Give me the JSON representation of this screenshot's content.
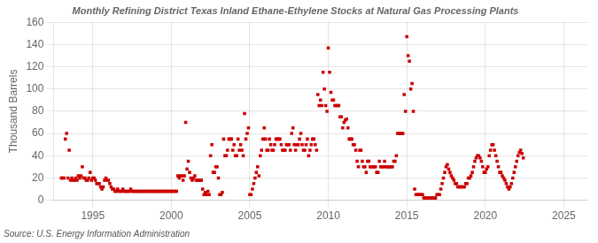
{
  "chart_data": {
    "type": "scatter",
    "title": "Monthly Refining District Texas Inland Ethane-Ethylene Stocks at Natural Gas Processing Plants",
    "ylabel": "Thousand Barrels",
    "annotations": [
      "Source: U.S. Energy Information Administration"
    ],
    "color": "#cc0000",
    "marker": "square",
    "grid": true,
    "xlim": [
      1992.5,
      2026.5
    ],
    "ylim": [
      0,
      160
    ],
    "xticks": [
      1995,
      2000,
      2005,
      2010,
      2015,
      2020,
      2025
    ],
    "yticks": [
      0,
      20,
      40,
      60,
      80,
      100,
      120,
      140,
      160
    ],
    "x": [
      1993.0,
      1993.083,
      1993.167,
      1993.25,
      1993.333,
      1993.417,
      1993.5,
      1993.583,
      1993.667,
      1993.75,
      1993.833,
      1993.917,
      1994.0,
      1994.083,
      1994.167,
      1994.25,
      1994.333,
      1994.417,
      1994.5,
      1994.583,
      1994.667,
      1994.75,
      1994.833,
      1994.917,
      1995.0,
      1995.083,
      1995.167,
      1995.25,
      1995.333,
      1995.417,
      1995.5,
      1995.583,
      1995.667,
      1995.75,
      1995.833,
      1995.917,
      1996.0,
      1996.083,
      1996.167,
      1996.25,
      1996.333,
      1996.417,
      1996.5,
      1996.583,
      1996.667,
      1996.75,
      1996.833,
      1996.917,
      1997.0,
      1997.083,
      1997.167,
      1997.25,
      1997.333,
      1997.417,
      1997.5,
      1997.583,
      1997.667,
      1997.75,
      1997.833,
      1997.917,
      1998.0,
      1998.083,
      1998.167,
      1998.25,
      1998.333,
      1998.417,
      1998.5,
      1998.583,
      1998.667,
      1998.75,
      1998.833,
      1998.917,
      1999.0,
      1999.083,
      1999.167,
      1999.25,
      1999.333,
      1999.417,
      1999.5,
      1999.583,
      1999.667,
      1999.75,
      1999.833,
      1999.917,
      2000.0,
      2000.083,
      2000.167,
      2000.25,
      2000.333,
      2000.417,
      2000.5,
      2000.583,
      2000.667,
      2000.75,
      2000.833,
      2000.917,
      2001.0,
      2001.083,
      2001.167,
      2001.25,
      2001.333,
      2001.417,
      2001.5,
      2001.583,
      2001.667,
      2001.75,
      2001.833,
      2001.917,
      2002.0,
      2002.083,
      2002.167,
      2002.25,
      2002.333,
      2002.417,
      2002.5,
      2002.583,
      2002.667,
      2002.75,
      2002.833,
      2002.917,
      2003.0,
      2003.083,
      2003.167,
      2003.25,
      2003.333,
      2003.417,
      2003.5,
      2003.583,
      2003.667,
      2003.75,
      2003.833,
      2003.917,
      2004.0,
      2004.083,
      2004.167,
      2004.25,
      2004.333,
      2004.417,
      2004.5,
      2004.583,
      2004.667,
      2004.75,
      2004.833,
      2004.917,
      2005.0,
      2005.083,
      2005.167,
      2005.25,
      2005.333,
      2005.417,
      2005.5,
      2005.583,
      2005.667,
      2005.75,
      2005.833,
      2005.917,
      2006.0,
      2006.083,
      2006.167,
      2006.25,
      2006.333,
      2006.417,
      2006.5,
      2006.583,
      2006.667,
      2006.75,
      2006.833,
      2006.917,
      2007.0,
      2007.083,
      2007.167,
      2007.25,
      2007.333,
      2007.417,
      2007.5,
      2007.583,
      2007.667,
      2007.75,
      2007.833,
      2007.917,
      2008.0,
      2008.083,
      2008.167,
      2008.25,
      2008.333,
      2008.417,
      2008.5,
      2008.583,
      2008.667,
      2008.75,
      2008.833,
      2008.917,
      2009.0,
      2009.083,
      2009.167,
      2009.25,
      2009.333,
      2009.417,
      2009.5,
      2009.583,
      2009.667,
      2009.75,
      2009.833,
      2009.917,
      2010.0,
      2010.083,
      2010.167,
      2010.25,
      2010.333,
      2010.417,
      2010.5,
      2010.583,
      2010.667,
      2010.75,
      2010.833,
      2010.917,
      2011.0,
      2011.083,
      2011.167,
      2011.25,
      2011.333,
      2011.417,
      2011.5,
      2011.583,
      2011.667,
      2011.75,
      2011.833,
      2011.917,
      2012.0,
      2012.083,
      2012.167,
      2012.25,
      2012.333,
      2012.417,
      2012.5,
      2012.583,
      2012.667,
      2012.75,
      2012.833,
      2012.917,
      2013.0,
      2013.083,
      2013.167,
      2013.25,
      2013.333,
      2013.417,
      2013.5,
      2013.583,
      2013.667,
      2013.75,
      2013.833,
      2013.917,
      2014.0,
      2014.083,
      2014.167,
      2014.25,
      2014.333,
      2014.417,
      2014.5,
      2014.583,
      2014.667,
      2014.75,
      2014.833,
      2014.917,
      2015.0,
      2015.083,
      2015.167,
      2015.25,
      2015.333,
      2015.417,
      2015.5,
      2015.583,
      2015.667,
      2015.75,
      2015.833,
      2015.917,
      2016.0,
      2016.083,
      2016.167,
      2016.25,
      2016.333,
      2016.417,
      2016.5,
      2016.583,
      2016.667,
      2016.75,
      2016.833,
      2016.917,
      2017.0,
      2017.083,
      2017.167,
      2017.25,
      2017.333,
      2017.417,
      2017.5,
      2017.583,
      2017.667,
      2017.75,
      2017.833,
      2017.917,
      2018.0,
      2018.083,
      2018.167,
      2018.25,
      2018.333,
      2018.417,
      2018.5,
      2018.583,
      2018.667,
      2018.75,
      2018.833,
      2018.917,
      2019.0,
      2019.083,
      2019.167,
      2019.25,
      2019.333,
      2019.417,
      2019.5,
      2019.583,
      2019.667,
      2019.75,
      2019.833,
      2019.917,
      2020.0,
      2020.083,
      2020.167,
      2020.25,
      2020.333,
      2020.417,
      2020.5,
      2020.583,
      2020.667,
      2020.75,
      2020.833,
      2020.917,
      2021.0,
      2021.083,
      2021.167,
      2021.25,
      2021.333,
      2021.417,
      2021.5,
      2021.583,
      2021.667,
      2021.75,
      2021.833,
      2021.917,
      2022.0,
      2022.083,
      2022.167,
      2022.25,
      2022.333,
      2022.417
    ],
    "y": [
      20,
      20,
      20,
      55,
      60,
      20,
      45,
      18,
      20,
      18,
      18,
      20,
      18,
      22,
      20,
      22,
      30,
      20,
      20,
      18,
      18,
      20,
      25,
      18,
      20,
      20,
      18,
      15,
      15,
      15,
      12,
      10,
      12,
      18,
      20,
      18,
      18,
      15,
      12,
      10,
      10,
      8,
      8,
      10,
      8,
      8,
      8,
      10,
      8,
      8,
      8,
      8,
      8,
      10,
      8,
      8,
      8,
      8,
      8,
      8,
      8,
      8,
      8,
      8,
      8,
      8,
      8,
      8,
      8,
      8,
      8,
      8,
      8,
      8,
      8,
      8,
      8,
      8,
      8,
      8,
      8,
      8,
      8,
      8,
      8,
      8,
      8,
      8,
      8,
      22,
      20,
      22,
      22,
      18,
      22,
      70,
      28,
      35,
      25,
      20,
      18,
      20,
      22,
      18,
      18,
      18,
      18,
      18,
      10,
      5,
      7,
      5,
      8,
      5,
      40,
      50,
      25,
      25,
      30,
      30,
      20,
      5,
      5,
      7,
      55,
      40,
      40,
      45,
      55,
      55,
      55,
      45,
      50,
      40,
      40,
      55,
      45,
      50,
      45,
      40,
      78,
      55,
      60,
      65,
      5,
      5,
      10,
      15,
      20,
      25,
      30,
      22,
      40,
      45,
      55,
      65,
      55,
      45,
      45,
      55,
      50,
      45,
      45,
      50,
      55,
      55,
      55,
      55,
      50,
      45,
      45,
      45,
      50,
      50,
      50,
      45,
      60,
      65,
      50,
      45,
      50,
      50,
      55,
      60,
      50,
      45,
      45,
      50,
      55,
      40,
      45,
      50,
      55,
      55,
      50,
      45,
      95,
      85,
      90,
      85,
      115,
      100,
      85,
      80,
      137,
      115,
      97,
      90,
      90,
      85,
      85,
      85,
      85,
      75,
      75,
      65,
      70,
      72,
      73,
      65,
      55,
      55,
      55,
      50,
      50,
      45,
      35,
      30,
      45,
      45,
      35,
      30,
      30,
      25,
      35,
      35,
      30,
      30,
      30,
      30,
      30,
      25,
      25,
      35,
      30,
      30,
      30,
      35,
      30,
      30,
      30,
      30,
      30,
      30,
      35,
      35,
      40,
      60,
      60,
      60,
      60,
      60,
      95,
      80,
      147,
      130,
      125,
      100,
      105,
      80,
      10,
      5,
      5,
      5,
      5,
      5,
      5,
      2,
      2,
      2,
      2,
      2,
      2,
      2,
      2,
      2,
      2,
      5,
      5,
      5,
      10,
      15,
      20,
      25,
      30,
      32,
      28,
      25,
      22,
      20,
      18,
      15,
      15,
      12,
      12,
      12,
      12,
      12,
      12,
      15,
      15,
      20,
      20,
      22,
      25,
      30,
      35,
      38,
      40,
      40,
      38,
      35,
      30,
      25,
      25,
      28,
      30,
      40,
      45,
      50,
      50,
      45,
      40,
      35,
      30,
      25,
      25,
      22,
      20,
      18,
      15,
      12,
      10,
      12,
      15,
      20,
      25,
      30,
      35,
      40,
      43,
      45,
      42,
      38
    ]
  }
}
